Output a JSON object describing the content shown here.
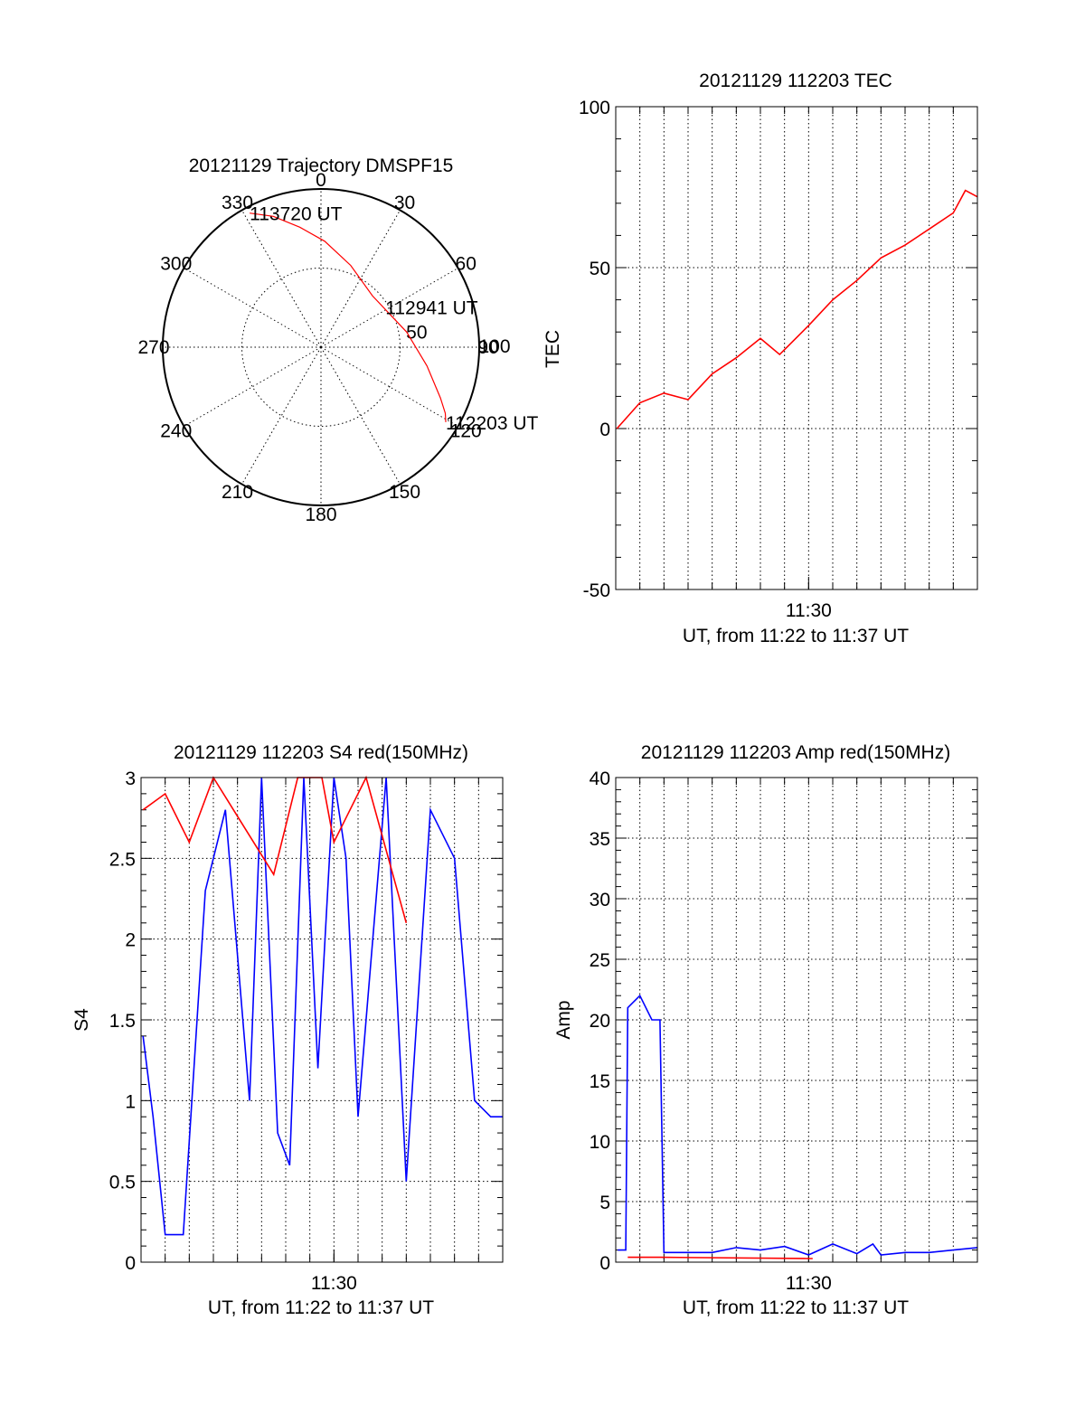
{
  "chart_data": [
    {
      "type": "polar",
      "title": "20121129 Trajectory DMSPF15",
      "azimuth_labels": [
        "0",
        "30",
        "60",
        "90",
        "120",
        "150",
        "180",
        "210",
        "240",
        "270",
        "300",
        "330"
      ],
      "radial_labels": [
        "50",
        "100"
      ],
      "radial_max": 100,
      "grid": true,
      "trajectory": {
        "color": "#ff0000",
        "points": [
          [
            332,
            96
          ],
          [
            340,
            88
          ],
          [
            350,
            77
          ],
          [
            2,
            67
          ],
          [
            20,
            55
          ],
          [
            45,
            46
          ],
          [
            80,
            55
          ],
          [
            100,
            68
          ],
          [
            113,
            82
          ],
          [
            118,
            89
          ],
          [
            121,
            92
          ]
        ]
      },
      "annotations": [
        {
          "text": "113720 UT",
          "az": 332,
          "r": 96
        },
        {
          "text": "112941 UT",
          "az": 58,
          "r": 48
        },
        {
          "text": "112203 UT",
          "az": 121,
          "r": 92
        }
      ]
    },
    {
      "type": "line",
      "title": "20121129 112203 TEC",
      "xlabel": "UT, from 11:22 to 11:37 UT",
      "ylabel": "TEC",
      "xlim": [
        "11:22",
        "11:37"
      ],
      "xticks": [
        "11:30"
      ],
      "ylim": [
        -50,
        100
      ],
      "yticks": [
        "-50",
        "0",
        "50",
        "100"
      ],
      "grid": true,
      "series": [
        {
          "color": "#ff0000",
          "x": [
            "11:22:03",
            "11:23:00",
            "11:24:00",
            "11:25:00",
            "11:26:00",
            "11:27:00",
            "11:28:00",
            "11:28:48",
            "11:30:00",
            "11:31:00",
            "11:32:00",
            "11:33:00",
            "11:34:00",
            "11:35:00",
            "11:36:00",
            "11:36:30",
            "11:37:00"
          ],
          "y": [
            0,
            8,
            11,
            9,
            17,
            22,
            28,
            23,
            32,
            40,
            46,
            53,
            57,
            62,
            67,
            74,
            72
          ]
        }
      ]
    },
    {
      "type": "line",
      "title": "20121129 112203 S4 red(150MHz)",
      "xlabel": "UT, from 11:22 to 11:37 UT",
      "ylabel": "S4",
      "xlim": [
        "11:22",
        "11:37"
      ],
      "xticks": [
        "11:30"
      ],
      "ylim": [
        0,
        3
      ],
      "yticks": [
        "0",
        "0.5",
        "1",
        "1.5",
        "2",
        "2.5",
        "3"
      ],
      "grid": true,
      "series": [
        {
          "color": "#0000ff",
          "x": [
            "11:22:05",
            "11:22:30",
            "11:23:00",
            "11:23:45",
            "11:24:40",
            "11:25:30",
            "11:26:30",
            "11:27:00",
            "11:27:40",
            "11:28:10",
            "11:28:45",
            "11:29:20",
            "11:30:00",
            "11:30:30",
            "11:31:00",
            "11:32:10",
            "11:33:00",
            "11:34:00",
            "11:35:00",
            "11:35:50",
            "11:36:30",
            "11:37:00"
          ],
          "y": [
            1.4,
            0.9,
            0.17,
            0.17,
            2.3,
            2.8,
            1.0,
            3.0,
            0.8,
            0.6,
            3.0,
            1.2,
            3.0,
            2.5,
            0.9,
            3.0,
            0.5,
            2.8,
            2.5,
            1.0,
            0.9,
            0.9
          ]
        },
        {
          "color": "#ff0000",
          "x": [
            "11:22:05",
            "11:23:00",
            "11:24:00",
            "11:25:00",
            "11:27:30",
            "11:28:30",
            "11:29:30",
            "11:30:00",
            "11:31:20",
            "11:33:00"
          ],
          "y": [
            2.8,
            2.9,
            2.6,
            3.0,
            2.4,
            3.0,
            3.0,
            2.6,
            3.0,
            2.1
          ]
        }
      ]
    },
    {
      "type": "line",
      "title": "20121129 112203 Amp red(150MHz)",
      "xlabel": "UT, from 11:22 to 11:37 UT",
      "ylabel": "Amp",
      "xlim": [
        "11:22",
        "11:37"
      ],
      "xticks": [
        "11:30"
      ],
      "ylim": [
        0,
        40
      ],
      "yticks": [
        "0",
        "5",
        "10",
        "15",
        "20",
        "25",
        "30",
        "35",
        "40"
      ],
      "grid": true,
      "series": [
        {
          "color": "#0000ff",
          "x": [
            "11:22:05",
            "11:22:25",
            "11:22:30",
            "11:23:00",
            "11:23:30",
            "11:23:50",
            "11:24:00",
            "11:26:00",
            "11:27:00",
            "11:28:00",
            "11:29:00",
            "11:30:00",
            "11:31:00",
            "11:32:00",
            "11:32:40",
            "11:33:00",
            "11:34:00",
            "11:35:00",
            "11:36:00",
            "11:37:00"
          ],
          "y": [
            1.0,
            1.0,
            21,
            22,
            20,
            20,
            0.8,
            0.8,
            1.2,
            1.0,
            1.3,
            0.6,
            1.5,
            0.7,
            1.5,
            0.6,
            0.8,
            0.8,
            1.0,
            1.2
          ]
        },
        {
          "color": "#ff0000",
          "x": [
            "11:22:30",
            "11:23:00",
            "11:23:30",
            "11:23:50",
            "11:30:00",
            "11:30:10"
          ],
          "y": [
            0.4,
            0.4,
            0.4,
            0.4,
            0.3,
            0.3
          ]
        }
      ]
    }
  ]
}
